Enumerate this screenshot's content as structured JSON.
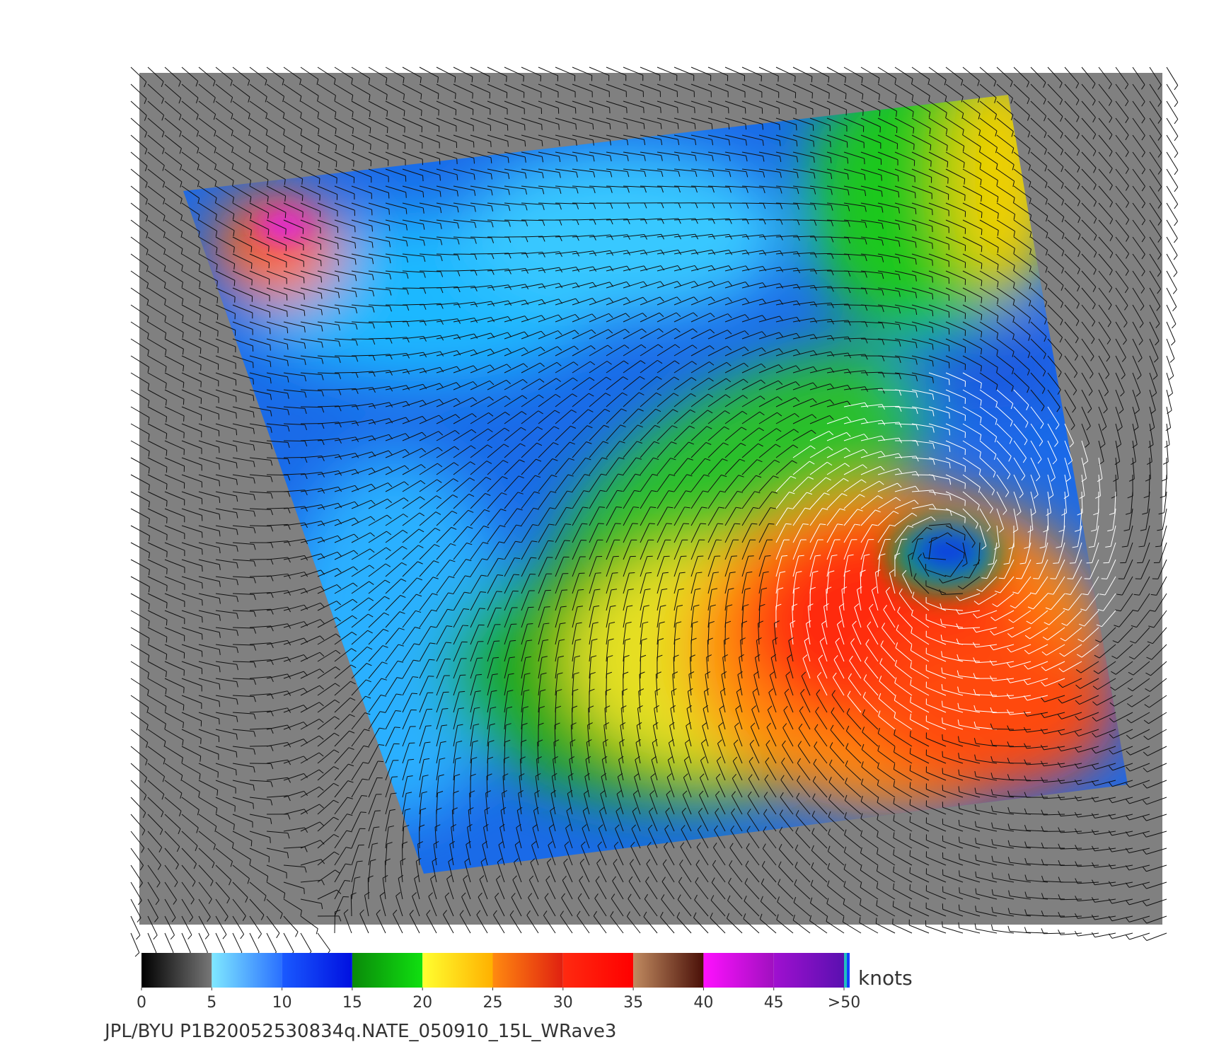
{
  "colorbar": {
    "unit": "knots",
    "lim": [
      0,
      50
    ],
    "ticks": [
      0,
      5,
      10,
      15,
      20,
      25,
      30,
      35,
      40,
      45,
      {
        "value": 50,
        "label": ">50"
      }
    ]
  },
  "caption": "JPL/BYU  P1B20052530834q.NATE_050910_15L_WRave3"
}
